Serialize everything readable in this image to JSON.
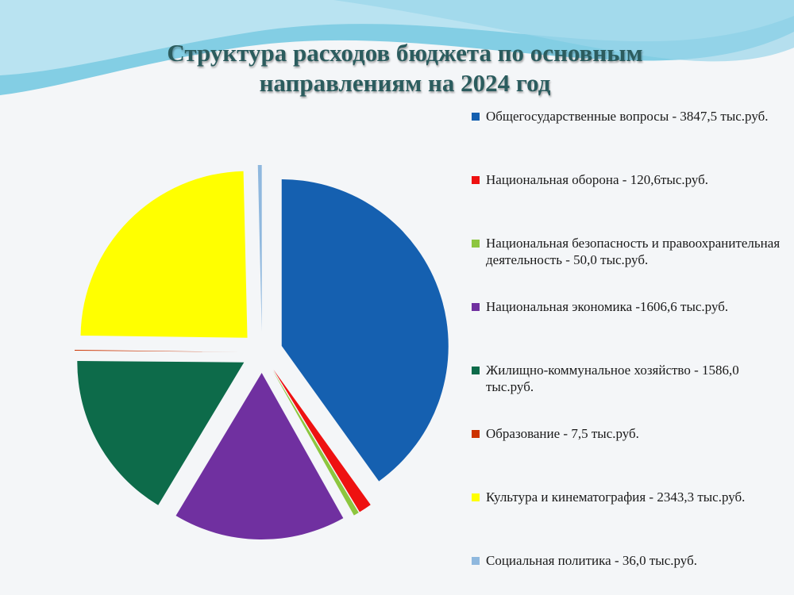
{
  "title_line1": "Структура расходов бюджета по основным",
  "title_line2": "направлениям на 2024 год",
  "colors": {
    "background": "#f4f6f8",
    "wave_dark": "#6ec7e0",
    "wave_light": "#bfe6f2",
    "title": "#2b5c5e"
  },
  "chart_data": {
    "type": "pie",
    "title": "Структура расходов бюджета по основным направлениям на 2024 год",
    "unit": "тыс.руб.",
    "legend_position": "right",
    "slices": [
      {
        "label": "Общегосударственные вопросы - 3847,5 тыс.руб.",
        "value": 3847.5,
        "color": "#1560b0"
      },
      {
        "label": "Национальная оборона - 120,6тыс.руб.",
        "value": 120.6,
        "color": "#ee1111"
      },
      {
        "label": "Национальная безопасность и правоохранительная деятельность - 50,0 тыс.руб.",
        "value": 50.0,
        "color": "#8dc63f"
      },
      {
        "label": "Национальная экономика -1606,6 тыс.руб.",
        "value": 1606.6,
        "color": "#7030a0"
      },
      {
        "label": "Жилищно-коммунальное хозяйство - 1586,0 тыс.руб.",
        "value": 1586.0,
        "color": "#0d6b4a"
      },
      {
        "label": "Образование - 7,5 тыс.руб.",
        "value": 7.5,
        "color": "#cc3300"
      },
      {
        "label": "Культура и кинематография - 2343,3 тыс.руб.",
        "value": 2343.3,
        "color": "#ffff00"
      },
      {
        "label": "Социальная политика - 36,0 тыс.руб.",
        "value": 36.0,
        "color": "#8fb8de"
      }
    ]
  }
}
